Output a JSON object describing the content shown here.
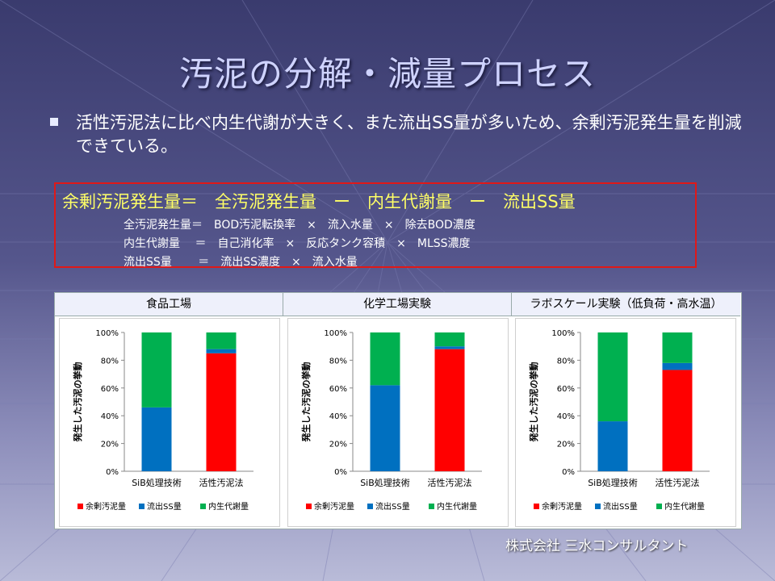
{
  "slide": {
    "title": "汚泥の分解・減量プロセス",
    "bullet": "活性汚泥法に比べ内生代謝が大きく、また流出SS量が多いため、余剰汚泥発生量を削減できている。",
    "company": "株式会社 三水コンサルタント",
    "formula": {
      "main": "余剰汚泥発生量＝　全汚泥発生量　ー　内生代謝量　ー　流出SS量",
      "lines": [
        "全汚泥発生量＝　BOD汚泥転換率　×　流入水量　×　除去BOD濃度",
        "内生代謝量　 ＝　自己消化率　×　反応タンク容積　×　MLSS濃度",
        "流出SS量　　 ＝　流出SS濃度　×　流入水量"
      ]
    },
    "colors": {
      "red": "#ff0000",
      "blue": "#0070c0",
      "green": "#00b050",
      "formula_text": "#ffff66",
      "box_border": "#e01818"
    }
  },
  "chart_data": [
    {
      "type": "bar",
      "stacked": true,
      "panel_title": "食品工場",
      "categories": [
        "SiB処理技術",
        "活性汚泥法"
      ],
      "ylabel": "発生した汚泥の挙動",
      "ylim": [
        0,
        100
      ],
      "yticks": [
        "0%",
        "20%",
        "40%",
        "60%",
        "80%",
        "100%"
      ],
      "series": [
        {
          "name": "余剰汚泥量",
          "color": "#ff0000",
          "values": [
            0,
            85
          ]
        },
        {
          "name": "流出SS量",
          "color": "#0070c0",
          "values": [
            46,
            3
          ]
        },
        {
          "name": "内生代謝量",
          "color": "#00b050",
          "values": [
            54,
            12
          ]
        }
      ]
    },
    {
      "type": "bar",
      "stacked": true,
      "panel_title": "化学工場実験",
      "categories": [
        "SiB処理技術",
        "活性汚泥法"
      ],
      "ylabel": "発生した汚泥の挙動",
      "ylim": [
        0,
        100
      ],
      "yticks": [
        "0%",
        "20%",
        "40%",
        "60%",
        "80%",
        "100%"
      ],
      "series": [
        {
          "name": "余剰汚泥量",
          "color": "#ff0000",
          "values": [
            0,
            88
          ]
        },
        {
          "name": "流出SS量",
          "color": "#0070c0",
          "values": [
            62,
            2
          ]
        },
        {
          "name": "内生代謝量",
          "color": "#00b050",
          "values": [
            38,
            10
          ]
        }
      ]
    },
    {
      "type": "bar",
      "stacked": true,
      "panel_title": "ラボスケール実験（低負荷・高水温）",
      "categories": [
        "SiB処理技術",
        "活性汚泥法"
      ],
      "ylabel": "発生した汚泥の挙動",
      "ylim": [
        0,
        100
      ],
      "yticks": [
        "0%",
        "20%",
        "40%",
        "60%",
        "80%",
        "100%"
      ],
      "series": [
        {
          "name": "余剰汚泥量",
          "color": "#ff0000",
          "values": [
            0,
            73
          ]
        },
        {
          "name": "流出SS量",
          "color": "#0070c0",
          "values": [
            36,
            5
          ]
        },
        {
          "name": "内生代謝量",
          "color": "#00b050",
          "values": [
            64,
            22
          ]
        }
      ]
    }
  ]
}
